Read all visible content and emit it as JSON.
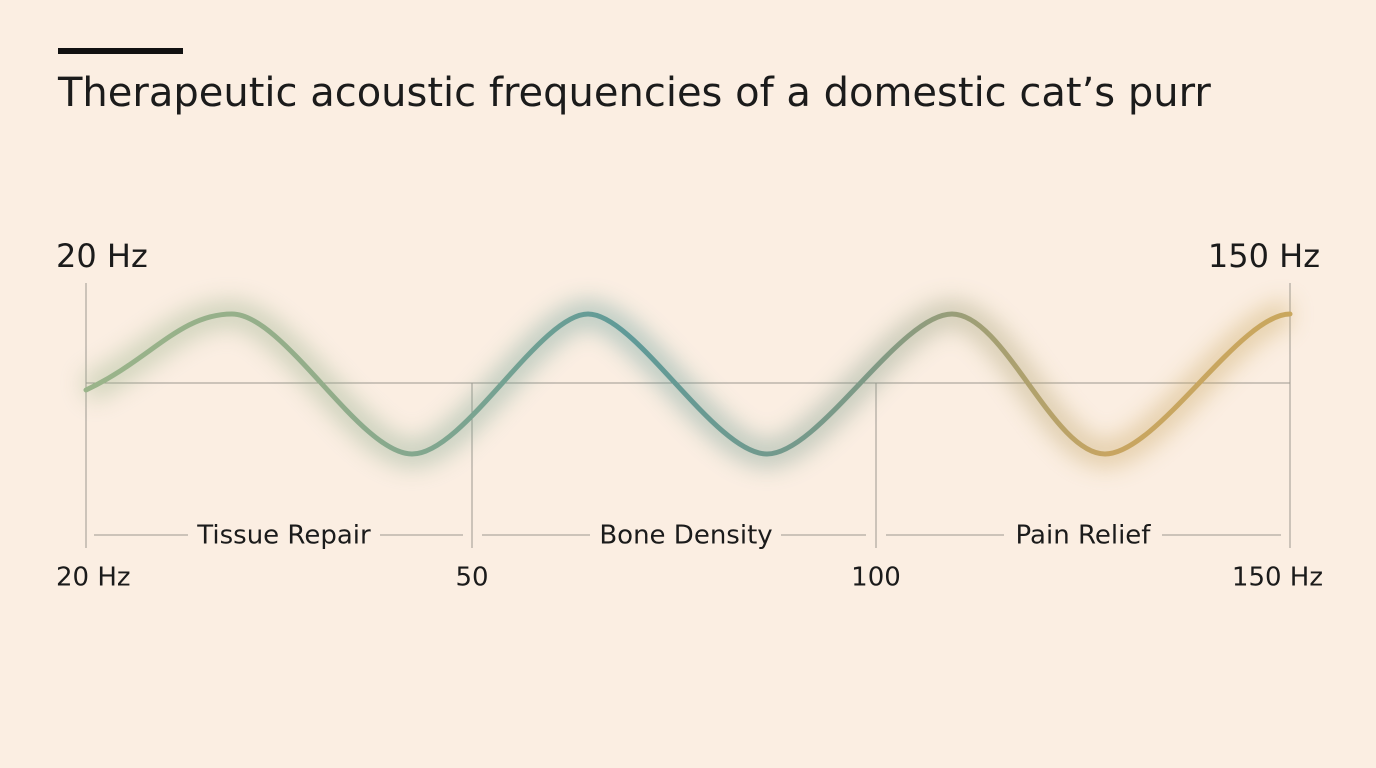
{
  "title": "Therapeutic acoustic frequencies of a domestic cat’s purr",
  "range": {
    "start": "20 Hz",
    "end": "150 Hz"
  },
  "bands": [
    {
      "label": "Tissue Repair"
    },
    {
      "label": "Bone Density"
    },
    {
      "label": "Pain Relief"
    }
  ],
  "axis": {
    "labels": [
      "20 Hz",
      "50",
      "100",
      "150 Hz"
    ]
  }
}
